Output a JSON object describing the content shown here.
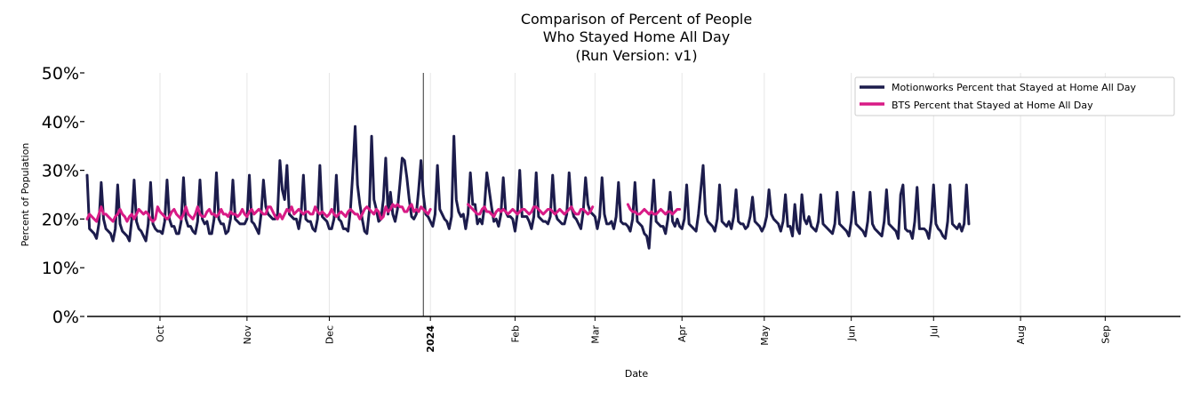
{
  "colors": {
    "motionworks": "#1c1c4c",
    "bts": "#d81b86",
    "grid": "#e6e6e6",
    "axis": "#000000"
  },
  "chart_data": {
    "type": "line",
    "title": [
      "Comparison of Percent of People",
      "Who Stayed Home All Day",
      "(Run Version: v1)"
    ],
    "xlabel": "Date",
    "ylabel": "Percent of Population",
    "ylim": [
      0,
      50
    ],
    "yticks": [
      {
        "value": 0,
        "label": "0%"
      },
      {
        "value": 10,
        "label": "10%"
      },
      {
        "value": 20,
        "label": "20%"
      },
      {
        "value": 30,
        "label": "30%"
      },
      {
        "value": 40,
        "label": "40%"
      },
      {
        "value": 50,
        "label": "50%"
      }
    ],
    "xlim": [
      0,
      465
    ],
    "xticks": [
      {
        "day": 31,
        "label": "Oct",
        "bold": false
      },
      {
        "day": 68,
        "label": "Nov",
        "bold": false
      },
      {
        "day": 103,
        "label": "Dec",
        "bold": false
      },
      {
        "day": 146,
        "label": "2024",
        "bold": true
      },
      {
        "day": 182,
        "label": "Feb",
        "bold": false
      },
      {
        "day": 216,
        "label": "Mar",
        "bold": false
      },
      {
        "day": 253,
        "label": "Apr",
        "bold": false
      },
      {
        "day": 288,
        "label": "May",
        "bold": false
      },
      {
        "day": 325,
        "label": "Jun",
        "bold": false
      },
      {
        "day": 360,
        "label": "Jul",
        "bold": false
      },
      {
        "day": 397,
        "label": "Aug",
        "bold": false
      },
      {
        "day": 433,
        "label": "Sep",
        "bold": false
      }
    ],
    "year_marker_day": 143,
    "legend": {
      "position": "top-right",
      "entries": [
        "Motionworks Percent that Stayed at Home All Day",
        "BTS Percent that Stayed at Home All Day"
      ]
    },
    "series": [
      {
        "name": "Motionworks Percent that Stayed at Home All Day",
        "color_key": "motionworks",
        "x_start": 0,
        "values": [
          29,
          18,
          17.5,
          17,
          16,
          19,
          27.5,
          20,
          18,
          17.5,
          17,
          15.5,
          18,
          27,
          19,
          17.5,
          17,
          16.5,
          15.5,
          20,
          28,
          19.5,
          18,
          17.5,
          16.5,
          15.5,
          19,
          27.5,
          19,
          18,
          17.5,
          17.5,
          17,
          19.5,
          28,
          20,
          18.5,
          18.5,
          17,
          17,
          19.5,
          28.5,
          20,
          18.5,
          18.5,
          17.5,
          17,
          19.5,
          28,
          20,
          19,
          19.5,
          17,
          17,
          20,
          29.5,
          20,
          19,
          19,
          17,
          17.5,
          20,
          28,
          20,
          19.5,
          19,
          19,
          19,
          20,
          29,
          19.5,
          19,
          18,
          17,
          21,
          28,
          22.5,
          21,
          20.5,
          20,
          20,
          21,
          32,
          26,
          24,
          31,
          21,
          20.5,
          20,
          20,
          18,
          21,
          29,
          20,
          19.5,
          19.5,
          18,
          17.5,
          20,
          31,
          20.5,
          20,
          19.5,
          18,
          18,
          20,
          29,
          20,
          19.5,
          18,
          18,
          17.5,
          22,
          29.5,
          39,
          27,
          23,
          20,
          17.5,
          17,
          21.5,
          37,
          24,
          22,
          19.5,
          20,
          24,
          32.5,
          21,
          25.5,
          21,
          19.5,
          22,
          27,
          32.5,
          32,
          28.5,
          24,
          20.5,
          20,
          21,
          26,
          32,
          25,
          21,
          20.5,
          19.5,
          18.5,
          21,
          31,
          22,
          21,
          20,
          19.5,
          18,
          20.5,
          37,
          24,
          21.5,
          20.5,
          21,
          18,
          21,
          29.5,
          23,
          23,
          19,
          20,
          19,
          22.5,
          29.5,
          26,
          22.5,
          19.5,
          20,
          18.5,
          21,
          28.5,
          21.5,
          20.5,
          20.5,
          20,
          17.5,
          21,
          30,
          20.5,
          20.5,
          20.5,
          19.5,
          18,
          20.5,
          29.5,
          20.5,
          20,
          19.5,
          19.5,
          19,
          20.5,
          29,
          21.5,
          20,
          19.5,
          19,
          19,
          21,
          29.5,
          22.5,
          20.5,
          20,
          19,
          18,
          21.5,
          28.5,
          23,
          21.5,
          21,
          20.5,
          18,
          20.5,
          28.5,
          21,
          19,
          19,
          19.5,
          18,
          20.5,
          27.5,
          19.5,
          19,
          19,
          18.5,
          17.5,
          20,
          27.5,
          19.5,
          19,
          18.5,
          17,
          16.5,
          14,
          21,
          28,
          19.5,
          19,
          18.5,
          18.5,
          17,
          20,
          25.5,
          19.5,
          18.5,
          20,
          18.5,
          18,
          20,
          27,
          19,
          18.5,
          18,
          17.5,
          21,
          26,
          31,
          21,
          19.5,
          19,
          18.5,
          17.5,
          20,
          27,
          19.5,
          19,
          18.5,
          19.5,
          18,
          20.5,
          26,
          19.5,
          19,
          19,
          18,
          18.5,
          20.5,
          24.5,
          19.5,
          19,
          18.5,
          17.5,
          18.5,
          20.5,
          26,
          21,
          20,
          19.5,
          19,
          17.5,
          19.5,
          25,
          18.5,
          18.5,
          16.5,
          23,
          18,
          17,
          25,
          20,
          19,
          20.5,
          18.5,
          18,
          17.5,
          19.5,
          25,
          19,
          18.5,
          18,
          17.5,
          17,
          19,
          25.5,
          19,
          18.5,
          18,
          17.5,
          16.5,
          19.5,
          25.5,
          19,
          18.5,
          18,
          17.5,
          16.5,
          19.5,
          25.5,
          19,
          18,
          17.5,
          17,
          16.5,
          19.5,
          26,
          19,
          18.5,
          18,
          17.5,
          16,
          25,
          27,
          18,
          17.5,
          17.5,
          16,
          19.5,
          26.5,
          18,
          18,
          18,
          17.5,
          16,
          19.5,
          27,
          19,
          18,
          17.5,
          16.5,
          16,
          19.5,
          27,
          19,
          18.5,
          18,
          19,
          17.5,
          19,
          27,
          19
        ]
      },
      {
        "name": "BTS Percent that Stayed at Home All Day",
        "color_key": "bts",
        "segments": [
          {
            "x_start": 0,
            "values": [
              20,
              21,
              20.5,
              20,
              19.5,
              21,
              22.5,
              21,
              21,
              20.5,
              20,
              19.5,
              20.5,
              21,
              22,
              21,
              20.5,
              19.5,
              20.5,
              21,
              20,
              21,
              22,
              21.5,
              21,
              21.5,
              21,
              20,
              19.5,
              20,
              22.5,
              21.5,
              21,
              20.5,
              20,
              20.5,
              21.5,
              22,
              21,
              20.5,
              20,
              21,
              22.5,
              21,
              20.5,
              20,
              21,
              22.5,
              21,
              20.5,
              20.5,
              21.5,
              22,
              21,
              21,
              20.5,
              21,
              22,
              21,
              21,
              20.5,
              21.5,
              21,
              21,
              20.5,
              21,
              22,
              21,
              20.5,
              21.5,
              22,
              21,
              21.5,
              22,
              21.5,
              21,
              21,
              22.5,
              22.5,
              21.5,
              20.5,
              20,
              21,
              20,
              21,
              22,
              21.5,
              22.5,
              21,
              21.5,
              22,
              21.5,
              21,
              21.5,
              21.5,
              21,
              21,
              22.5,
              21.5,
              21,
              21.5,
              21,
              20.5,
              21,
              22,
              21,
              20.5,
              21,
              21.5,
              21,
              20.5,
              21.5,
              22,
              21.5,
              21,
              21,
              20,
              21,
              22,
              22.5,
              22,
              21.5,
              21,
              22,
              21.5,
              20,
              20.5,
              22.5,
              21.5,
              22,
              23,
              22.5,
              23,
              22.5,
              22.5,
              21.5,
              21.5,
              22.5,
              23,
              21.5,
              22,
              21.5,
              22.5,
              22,
              21.5,
              21,
              22
            ]
          },
          {
            "x_start": 162,
            "values": [
              23,
              22.5,
              22,
              21.5,
              21,
              21,
              22,
              22.5,
              21.5,
              21.5,
              21,
              20.5,
              21.5,
              22,
              21.5,
              22,
              21.5,
              21,
              21.5,
              22,
              21.5,
              21,
              21.5,
              22,
              22,
              21.5,
              21,
              21.5,
              22.5,
              22.5,
              22,
              21.5,
              21,
              21.5,
              22,
              22,
              21.5,
              21,
              21.5,
              22,
              21.5,
              21,
              21.5,
              22,
              22.5,
              21.5,
              21,
              21,
              22,
              22,
              21.5,
              21,
              21.5,
              22.5
            ]
          },
          {
            "x_start": 230,
            "values": [
              23,
              22,
              21.5,
              21.5,
              21,
              21,
              21.5,
              22,
              21.5,
              21,
              21.5,
              21,
              21,
              21.5,
              22,
              21.5,
              21,
              21.5,
              21.5,
              21,
              21.5,
              22,
              22
            ]
          }
        ]
      }
    ]
  }
}
